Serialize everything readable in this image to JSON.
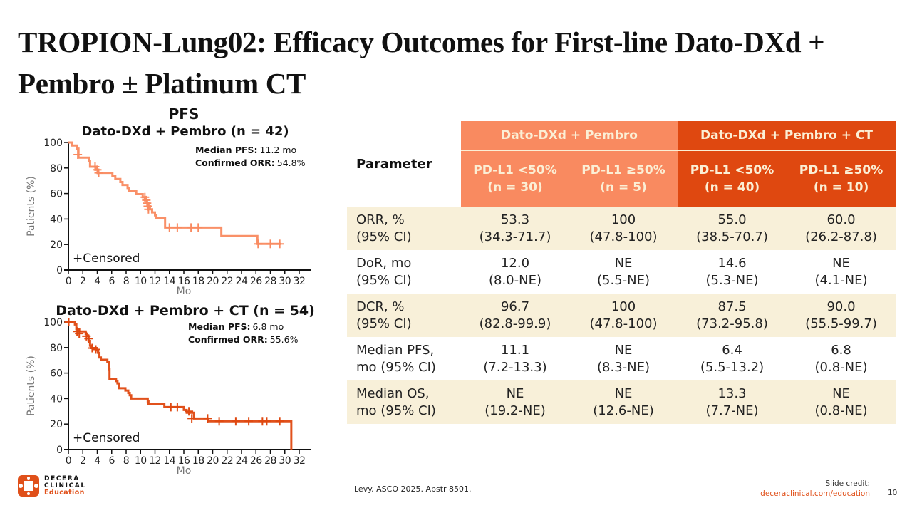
{
  "title": "TROPION-Lung02: Efficacy Outcomes for First-line Dato-DXd + Pembro ± Platinum CT",
  "colors": {
    "light_orange": "#F98A60",
    "dark_orange": "#DF4810",
    "cream": "#FBEFD5",
    "shaded_row": "#F8F0D9",
    "link": "#E0501A"
  },
  "chart_data": [
    {
      "type": "line",
      "subtype": "kaplan-meier",
      "section_title": "PFS",
      "title": "Dato-DXd + Pembro (n = 42)",
      "xlabel": "Mo",
      "ylabel": "Patients (%)",
      "xlim": [
        0,
        32
      ],
      "ylim": [
        0,
        100
      ],
      "xticks": [
        0,
        2,
        4,
        6,
        8,
        10,
        12,
        14,
        16,
        18,
        20,
        22,
        24,
        26,
        28,
        30,
        32
      ],
      "yticks": [
        0,
        20,
        40,
        60,
        80,
        100
      ],
      "color": "#F98A60",
      "annotations": [
        {
          "label": "Median PFS:",
          "value": "11.2 mo"
        },
        {
          "label": "Confirmed ORR:",
          "value": "54.8%"
        }
      ],
      "legend": "+Censored",
      "legend_position": "bottom-left",
      "steps": [
        [
          0,
          100
        ],
        [
          0.5,
          97.6
        ],
        [
          1.2,
          95.2
        ],
        [
          1.4,
          88.1
        ],
        [
          2.9,
          85.7
        ],
        [
          3.0,
          81.0
        ],
        [
          3.9,
          78.6
        ],
        [
          4.1,
          76.2
        ],
        [
          6.1,
          73.8
        ],
        [
          6.5,
          71.4
        ],
        [
          7.2,
          69.0
        ],
        [
          7.5,
          66.7
        ],
        [
          8.2,
          64.3
        ],
        [
          8.4,
          61.9
        ],
        [
          9.4,
          59.5
        ],
        [
          10.3,
          57.1
        ],
        [
          10.6,
          54.8
        ],
        [
          10.9,
          52.4
        ],
        [
          11.1,
          50.0
        ],
        [
          11.3,
          47.6
        ],
        [
          11.6,
          45.2
        ],
        [
          12.0,
          42.9
        ],
        [
          12.2,
          40.5
        ],
        [
          13.4,
          33.3
        ],
        [
          21.2,
          26.7
        ],
        [
          26.2,
          20.5
        ],
        [
          29.5,
          20.5
        ]
      ],
      "censored": [
        [
          1.3,
          90.5
        ],
        [
          3.7,
          81.0
        ],
        [
          4.0,
          78.6
        ],
        [
          4.2,
          76.2
        ],
        [
          10.6,
          57.1
        ],
        [
          10.8,
          54.8
        ],
        [
          10.9,
          52.4
        ],
        [
          11.0,
          50.0
        ],
        [
          11.1,
          47.6
        ],
        [
          14.0,
          33.3
        ],
        [
          15.1,
          33.3
        ],
        [
          17.0,
          33.3
        ],
        [
          18.0,
          33.3
        ],
        [
          26.3,
          20.5
        ],
        [
          28.0,
          20.5
        ],
        [
          29.3,
          20.5
        ]
      ]
    },
    {
      "type": "line",
      "subtype": "kaplan-meier",
      "title": "Dato-DXd + Pembro + CT (n = 54)",
      "xlabel": "Mo",
      "ylabel": "Patients (%)",
      "xlim": [
        0,
        32
      ],
      "ylim": [
        0,
        100
      ],
      "xticks": [
        0,
        2,
        4,
        6,
        8,
        10,
        12,
        14,
        16,
        18,
        20,
        22,
        24,
        26,
        28,
        30,
        32
      ],
      "yticks": [
        0,
        20,
        40,
        60,
        80,
        100
      ],
      "color": "#DF4810",
      "annotations": [
        {
          "label": "Median PFS:",
          "value": "6.8 mo"
        },
        {
          "label": "Confirmed ORR:",
          "value": "55.6%"
        }
      ],
      "legend": "+Censored",
      "legend_position": "bottom-left",
      "steps": [
        [
          0,
          100
        ],
        [
          0.9,
          98.1
        ],
        [
          1.1,
          94.4
        ],
        [
          1.5,
          92.6
        ],
        [
          2.4,
          90.7
        ],
        [
          2.6,
          88.9
        ],
        [
          2.8,
          85.2
        ],
        [
          3.0,
          81.5
        ],
        [
          3.1,
          79.6
        ],
        [
          3.9,
          77.8
        ],
        [
          4.1,
          75.9
        ],
        [
          4.3,
          72.2
        ],
        [
          4.5,
          70.4
        ],
        [
          5.4,
          68.5
        ],
        [
          5.6,
          63.0
        ],
        [
          5.7,
          55.6
        ],
        [
          6.6,
          53.7
        ],
        [
          6.8,
          51.9
        ],
        [
          7.0,
          48.1
        ],
        [
          7.9,
          46.3
        ],
        [
          8.3,
          44.4
        ],
        [
          8.5,
          42.6
        ],
        [
          8.7,
          40.0
        ],
        [
          11.0,
          37.8
        ],
        [
          11.1,
          35.6
        ],
        [
          13.3,
          33.3
        ],
        [
          16.0,
          31.1
        ],
        [
          16.4,
          28.9
        ],
        [
          17.4,
          24.4
        ],
        [
          19.4,
          22.2
        ],
        [
          30.9,
          22.2
        ],
        [
          30.9,
          0
        ]
      ],
      "censored": [
        [
          0.05,
          100
        ],
        [
          1.2,
          92.6
        ],
        [
          1.5,
          91.0
        ],
        [
          2.5,
          88.9
        ],
        [
          2.8,
          87.0
        ],
        [
          3.3,
          79.6
        ],
        [
          3.8,
          78.5
        ],
        [
          14.2,
          33.3
        ],
        [
          15.1,
          33.3
        ],
        [
          16.7,
          30.0
        ],
        [
          17.1,
          24.4
        ],
        [
          19.3,
          24.4
        ],
        [
          20.9,
          22.2
        ],
        [
          23.2,
          22.2
        ],
        [
          25.0,
          22.2
        ],
        [
          26.9,
          22.2
        ],
        [
          27.5,
          22.2
        ],
        [
          29.3,
          22.2
        ]
      ]
    }
  ],
  "table": {
    "param_header": "Parameter",
    "groups": [
      {
        "label": "Dato-DXd + Pembro"
      },
      {
        "label": "Dato-DXd + Pembro + CT"
      }
    ],
    "subheaders": [
      {
        "line1": "PD-L1 <50%",
        "line2": "(n = 30)"
      },
      {
        "line1": "PD-L1 ≥50%",
        "line2": "(n = 5)"
      },
      {
        "line1": "PD-L1 <50%",
        "line2": "(n = 40)"
      },
      {
        "line1": "PD-L1 ≥50%",
        "line2": "(n = 10)"
      }
    ],
    "rows": [
      {
        "label1": "ORR, %",
        "label2": "(95% CI)",
        "cells": [
          {
            "v": "53.3",
            "ci": "(34.3-71.7)"
          },
          {
            "v": "100",
            "ci": "(47.8-100)"
          },
          {
            "v": "55.0",
            "ci": "(38.5-70.7)"
          },
          {
            "v": "60.0",
            "ci": "(26.2-87.8)"
          }
        ]
      },
      {
        "label1": "DoR, mo",
        "label2": "(95% CI)",
        "cells": [
          {
            "v": "12.0",
            "ci": "(8.0-NE)"
          },
          {
            "v": "NE",
            "ci": "(5.5-NE)"
          },
          {
            "v": "14.6",
            "ci": "(5.3-NE)"
          },
          {
            "v": "NE",
            "ci": "(4.1-NE)"
          }
        ]
      },
      {
        "label1": "DCR, %",
        "label2": "(95% CI)",
        "cells": [
          {
            "v": "96.7",
            "ci": "(82.8-99.9)"
          },
          {
            "v": "100",
            "ci": "(47.8-100)"
          },
          {
            "v": "87.5",
            "ci": "(73.2-95.8)"
          },
          {
            "v": "90.0",
            "ci": "(55.5-99.7)"
          }
        ]
      },
      {
        "label1": "Median PFS,",
        "label2": "mo (95% CI)",
        "cells": [
          {
            "v": "11.1",
            "ci": "(7.2-13.3)"
          },
          {
            "v": "NE",
            "ci": "(8.3-NE)"
          },
          {
            "v": "6.4",
            "ci": "(5.5-13.2)"
          },
          {
            "v": "6.8",
            "ci": "(0.8-NE)"
          }
        ]
      },
      {
        "label1": "Median OS,",
        "label2": "mo (95% CI)",
        "cells": [
          {
            "v": "NE",
            "ci": "(19.2-NE)"
          },
          {
            "v": "NE",
            "ci": "(12.6-NE)"
          },
          {
            "v": "13.3",
            "ci": "(7.7-NE)"
          },
          {
            "v": "NE",
            "ci": "(0.8-NE)"
          }
        ]
      }
    ]
  },
  "footer": {
    "citation": "Levy. ASCO 2025. Abstr 8501.",
    "credit_label": "Slide credit:",
    "credit_link": "deceraclinical.com/education",
    "page_number": "10",
    "logo_line1": "DECERA",
    "logo_line2": "CLINICAL",
    "logo_line3": "Education"
  }
}
